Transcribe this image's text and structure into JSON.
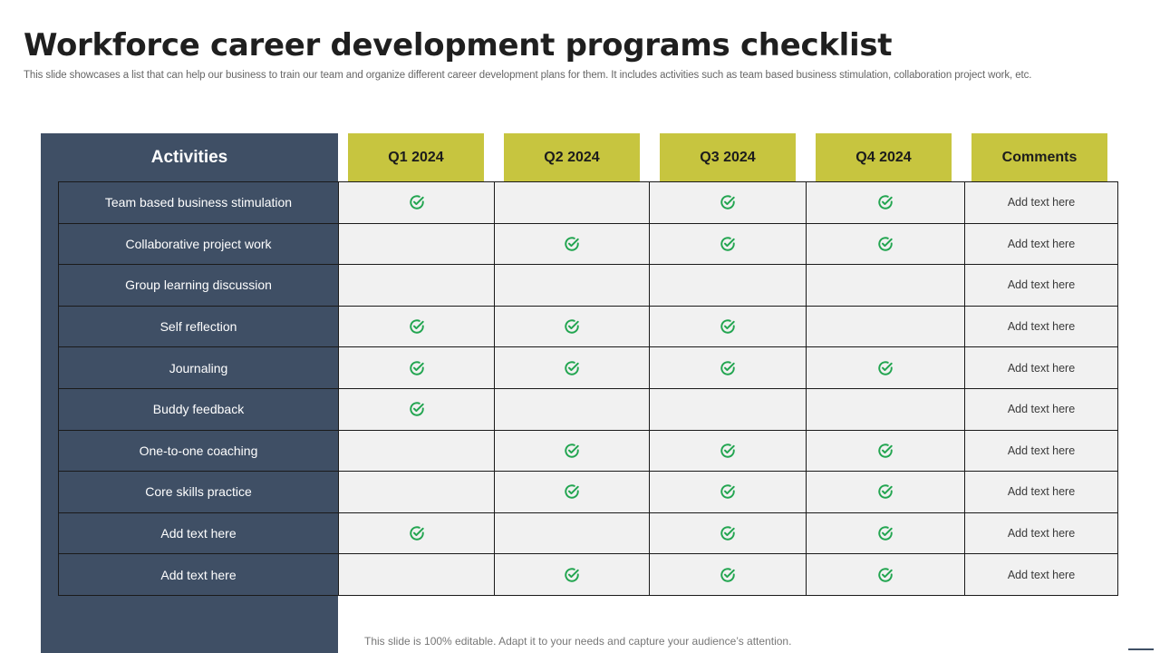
{
  "slide": {
    "title": "Workforce career development programs checklist",
    "subtitle": "This slide showcases a list that can help our business to train our team and organize different career development plans for them. It includes activities such as team based business stimulation, collaboration project work, etc.",
    "footer_note": "This slide is 100% editable. Adapt it to your needs and capture your audience’s attention."
  },
  "colors": {
    "panel": "#3f4f65",
    "header_accent": "#c7c53f",
    "cell_bg": "#f1f1f1",
    "check": "#22a550"
  },
  "table": {
    "activities_header": "Activities",
    "columns": [
      "Q1 2024",
      "Q2 2024",
      "Q3 2024",
      "Q4 2024",
      "Comments"
    ],
    "rows": [
      {
        "activity": "Team  based  business stimulation",
        "checks": [
          true,
          false,
          true,
          true
        ],
        "comment": "Add text here"
      },
      {
        "activity": "Collaborative  project work",
        "checks": [
          false,
          true,
          true,
          true
        ],
        "comment": "Add text here"
      },
      {
        "activity": "Group learning discussion",
        "checks": [
          false,
          false,
          false,
          false
        ],
        "comment": "Add text here"
      },
      {
        "activity": "Self reflection",
        "checks": [
          true,
          true,
          true,
          false
        ],
        "comment": "Add text here"
      },
      {
        "activity": "Journaling",
        "checks": [
          true,
          true,
          true,
          true
        ],
        "comment": "Add text here"
      },
      {
        "activity": "Buddy feedback",
        "checks": [
          true,
          false,
          false,
          false
        ],
        "comment": "Add text here"
      },
      {
        "activity": "One-to-one  coaching",
        "checks": [
          false,
          true,
          true,
          true
        ],
        "comment": "Add text here"
      },
      {
        "activity": "Core skills practice",
        "checks": [
          false,
          true,
          true,
          true
        ],
        "comment": "Add text here"
      },
      {
        "activity": "Add text here",
        "checks": [
          true,
          false,
          true,
          true
        ],
        "comment": "Add text here"
      },
      {
        "activity": "Add text here",
        "checks": [
          false,
          true,
          true,
          true
        ],
        "comment": "Add text here"
      }
    ],
    "check_icon": "circle-check-icon"
  }
}
